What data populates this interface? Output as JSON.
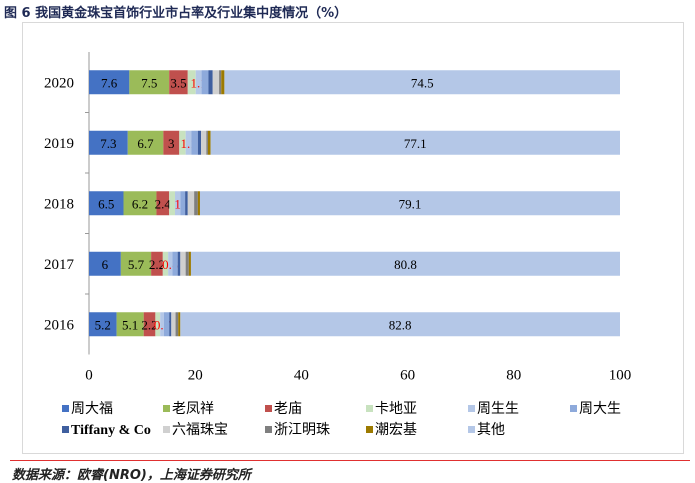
{
  "title": "图 6 我国黄金珠宝首饰行业市占率及行业集中度情况（%）",
  "source": "数据来源：欧睿(NRO)，上海证券研究所",
  "chart_data": {
    "type": "bar",
    "orientation": "horizontal",
    "stacked": true,
    "categories": [
      "2020",
      "2019",
      "2018",
      "2017",
      "2016"
    ],
    "xlim": [
      0,
      100
    ],
    "xticks": [
      0,
      20,
      40,
      60,
      80,
      100
    ],
    "grid": false,
    "legend_placement": "bottom",
    "series": [
      {
        "name": "周大福",
        "color": "#4472c4",
        "values": [
          7.6,
          7.3,
          6.5,
          6,
          5.2
        ],
        "labeled": true,
        "label_color": "#000000"
      },
      {
        "name": "老凤祥",
        "color": "#9bbb59",
        "values": [
          7.5,
          6.7,
          6.2,
          5.7,
          5.1
        ],
        "labeled": true,
        "label_color": "#000000"
      },
      {
        "name": "老庙",
        "color": "#c0504d",
        "values": [
          3.5,
          3,
          2.4,
          2.2,
          2.2
        ],
        "labeled": true,
        "label_color": "#000000"
      },
      {
        "name": "卡地亚",
        "color": "#c8e2bf",
        "values": [
          1.5,
          1.2,
          1.1,
          1.0,
          0.9
        ],
        "labeled": false
      },
      {
        "name": "周生生",
        "color": "#b4c7e7",
        "values": [
          1.1,
          1.1,
          1,
          0.8,
          0.7
        ],
        "labeled": true,
        "label_color": "#ff0000"
      },
      {
        "name": "周大生",
        "color": "#8eaadb",
        "values": [
          1.3,
          1.2,
          0.9,
          1.0,
          1.0
        ],
        "labeled": false
      },
      {
        "name": "Tiffany & Co",
        "color": "#3f5f9f",
        "values": [
          0.8,
          0.6,
          0.5,
          0.5,
          0.4
        ],
        "labeled": false
      },
      {
        "name": "六福珠宝",
        "color": "#d0d0d0",
        "values": [
          1.2,
          1.0,
          1.2,
          1.0,
          0.8
        ],
        "labeled": false
      },
      {
        "name": "浙江明珠",
        "color": "#7f7f7f",
        "values": [
          0.4,
          0.3,
          0.7,
          0.6,
          0.5
        ],
        "labeled": false
      },
      {
        "name": "潮宏基",
        "color": "#9c7a00",
        "values": [
          0.6,
          0.5,
          0.4,
          0.4,
          0.4
        ],
        "labeled": false
      },
      {
        "name": "其他",
        "color": "#b4c7e7",
        "values": [
          74.5,
          77.1,
          79.1,
          80.8,
          82.8
        ],
        "labeled": true,
        "label_color": "#000000"
      }
    ]
  }
}
